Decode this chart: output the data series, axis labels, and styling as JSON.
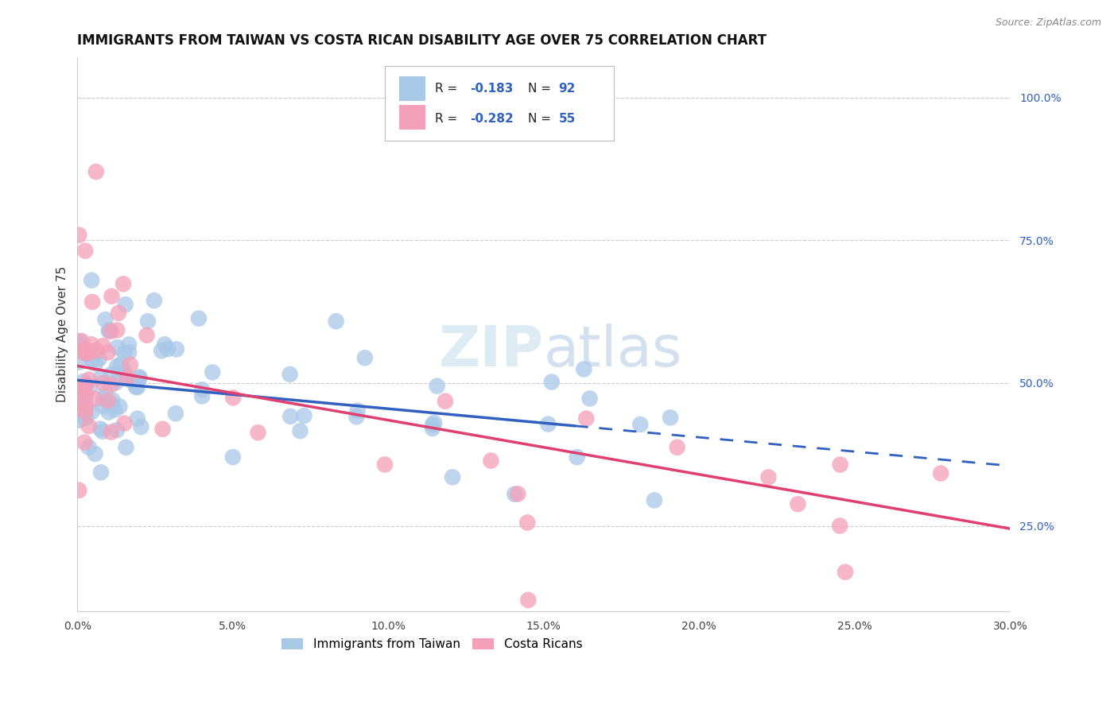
{
  "title": "IMMIGRANTS FROM TAIWAN VS COSTA RICAN DISABILITY AGE OVER 75 CORRELATION CHART",
  "source": "Source: ZipAtlas.com",
  "ylabel": "Disability Age Over 75",
  "x_ticks": [
    0.0,
    5.0,
    10.0,
    15.0,
    20.0,
    25.0,
    30.0
  ],
  "y_ticks_right": [
    25.0,
    50.0,
    75.0,
    100.0
  ],
  "xlim": [
    0.0,
    30.0
  ],
  "ylim": [
    10.0,
    107.0
  ],
  "legend_labels": [
    "Immigrants from Taiwan",
    "Costa Ricans"
  ],
  "legend_r": [
    -0.183,
    -0.282
  ],
  "legend_n": [
    92,
    55
  ],
  "taiwan_color": "#a8c8e8",
  "costarica_color": "#f4a0b8",
  "taiwan_line_color": "#3060c0",
  "costarica_line_color": "#e04070",
  "background_color": "#ffffff",
  "grid_color": "#cccccc",
  "taiwan_solid_end_x": 16.0,
  "taiwan_dash_end_x": 30.0,
  "costarica_line_end_x": 30.0,
  "taiwan_line_y0": 50.5,
  "taiwan_line_slope": -0.5,
  "costarica_line_y0": 53.0,
  "costarica_line_slope": -0.95
}
